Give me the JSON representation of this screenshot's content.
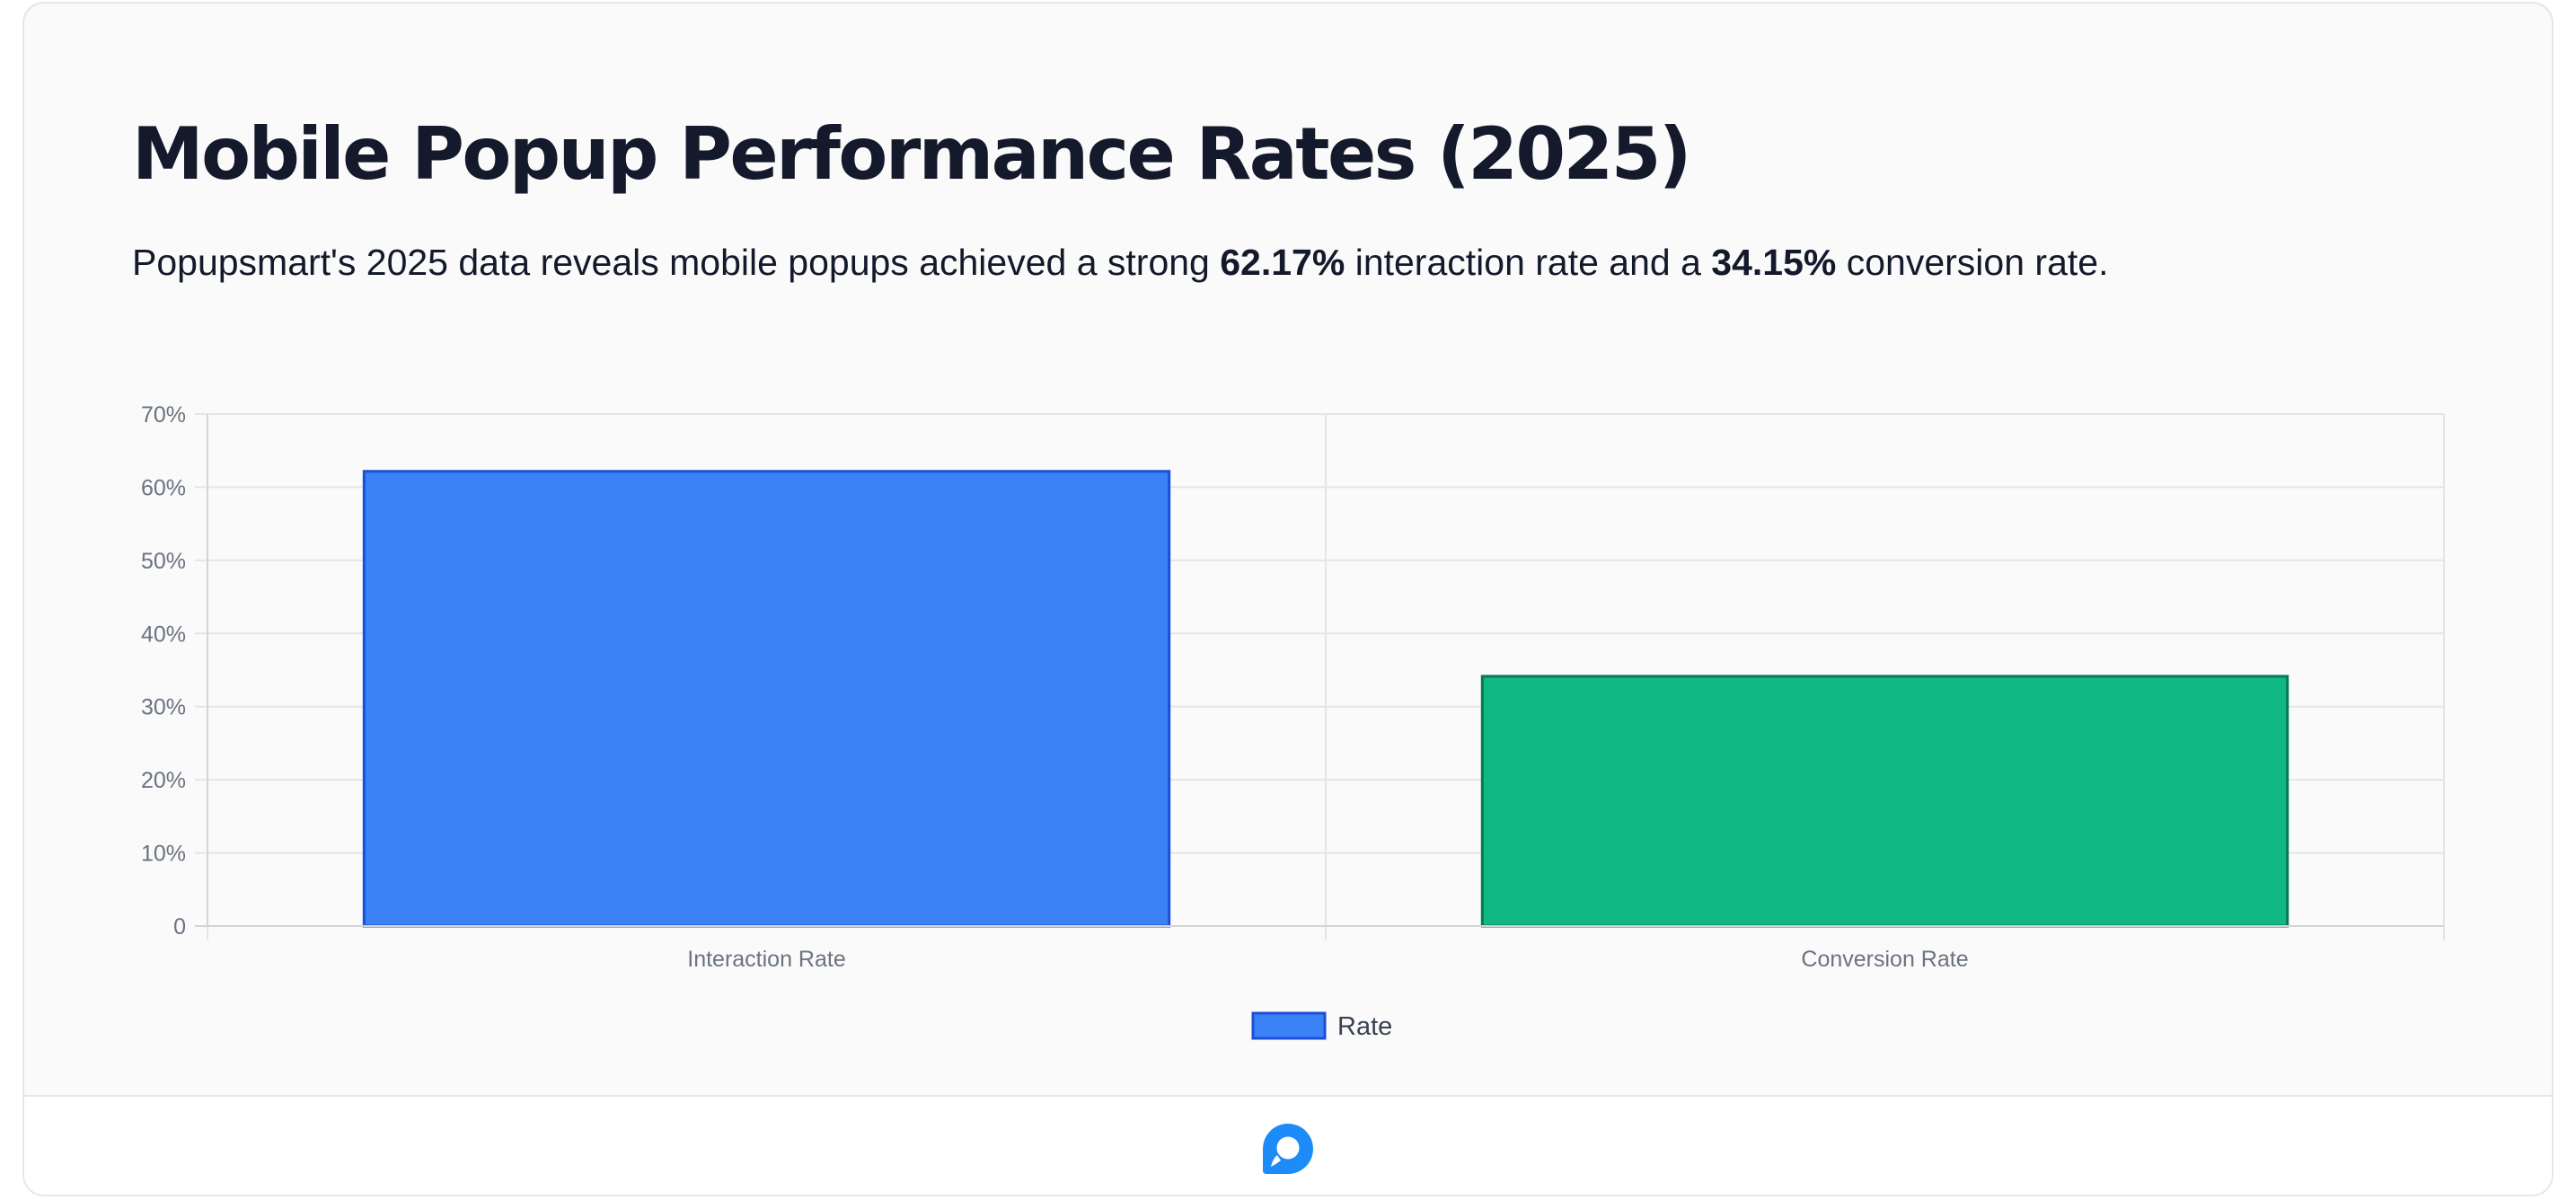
{
  "header": {
    "title": "Mobile Popup Performance Rates (2025)",
    "subtitle_before": "Popupsmart's 2025 data reveals mobile popups achieved a strong ",
    "subtitle_value1": "62.17%",
    "subtitle_middle": " interaction rate and a ",
    "subtitle_value2": "34.15%",
    "subtitle_after": " conversion rate."
  },
  "chart_data": {
    "type": "bar",
    "categories": [
      "Interaction Rate",
      "Conversion Rate"
    ],
    "series": [
      {
        "name": "Rate",
        "values": [
          62.17,
          34.15
        ]
      }
    ],
    "bar_colors": [
      "#3b82f6",
      "#10b981"
    ],
    "bar_border_colors": [
      "#1d4ed8",
      "#047857"
    ],
    "ylim": [
      0,
      70
    ],
    "yticks": [
      0,
      10,
      20,
      30,
      40,
      50,
      60,
      70
    ],
    "ytick_labels": [
      "0",
      "10%",
      "20%",
      "30%",
      "40%",
      "50%",
      "60%",
      "70%"
    ],
    "grid": true,
    "legend_position": "bottom"
  },
  "footer": {
    "logo_icon": "popupsmart-logo-icon"
  },
  "colors": {
    "title": "#141a2b",
    "grid": "#e5e5e5",
    "tick_text": "#6b7280",
    "legend_text": "#374151",
    "logo": "#1d8cf8"
  }
}
